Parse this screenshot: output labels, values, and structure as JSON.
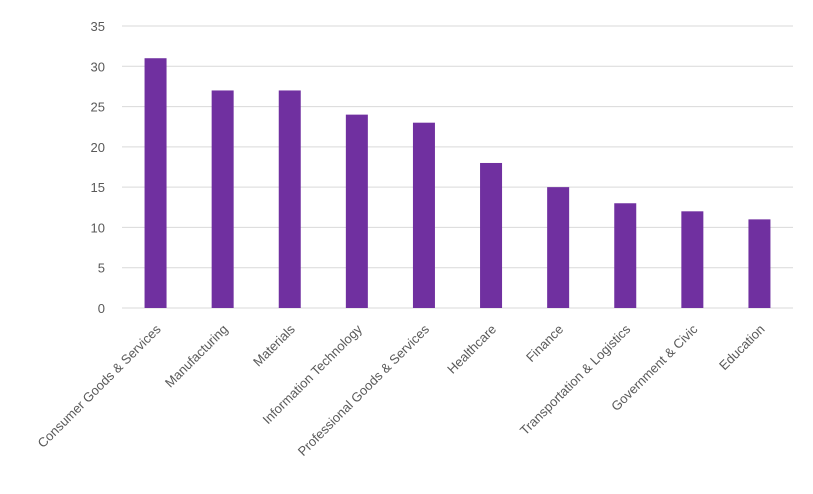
{
  "chart_data": {
    "type": "bar",
    "title": "",
    "xlabel": "",
    "ylabel": "",
    "categories": [
      "Consumer Goods & Services",
      "Manufacturing",
      "Materials",
      "Information Technology",
      "Professional Goods & Services",
      "Healthcare",
      "Finance",
      "Transportation & Logistics",
      "Government & Civic",
      "Education"
    ],
    "values": [
      31,
      27,
      27,
      24,
      23,
      18,
      15,
      13,
      12,
      11
    ],
    "ylim": [
      0,
      35
    ],
    "yticks": [
      0,
      5,
      10,
      15,
      20,
      25,
      30,
      35
    ],
    "grid": true,
    "legend": "none",
    "colors": {
      "bar": "#7030A0",
      "grid": "#D9D9D9",
      "text": "#595959"
    }
  }
}
